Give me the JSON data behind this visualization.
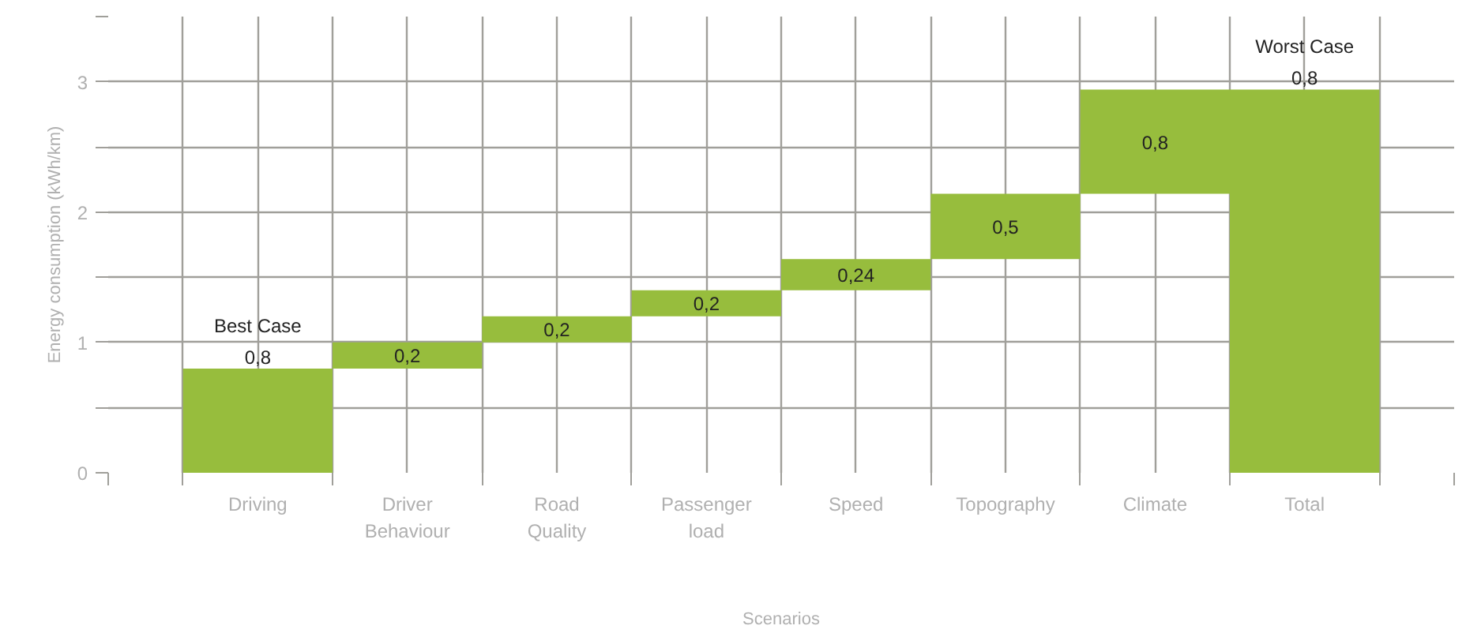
{
  "chart_data": {
    "type": "bar",
    "xlabel": "Scenarios",
    "ylabel": "Energy consumption (kWh/km)",
    "categories": [
      "Driving",
      "Driver Behaviour",
      "Road Quality",
      "Passenger load",
      "Speed",
      "Topography",
      "Climate",
      "Total"
    ],
    "base": [
      0,
      0.8,
      1.0,
      1.2,
      1.4,
      1.64,
      2.14,
      0
    ],
    "values": [
      0.8,
      0.2,
      0.2,
      0.2,
      0.24,
      0.5,
      0.8,
      2.94
    ],
    "value_labels": [
      "0,8",
      "0,2",
      "0,2",
      "0,2",
      "0,24",
      "0,5",
      "0,8",
      null
    ],
    "color": "#97bd3d",
    "ylim": [
      0,
      3.5
    ],
    "yticks": [
      0,
      {
        "value": 0.5,
        "label": null
      },
      1,
      {
        "value": 1.5,
        "label": null
      },
      2,
      {
        "value": 2.5,
        "label": null
      },
      3,
      {
        "value": 3.5,
        "label": null
      }
    ],
    "grid": true,
    "annotations": [
      {
        "text": "Best Case",
        "x": "Driving",
        "y": 0.8
      },
      {
        "text": "0,8",
        "x": "Total",
        "y": 2.94
      },
      {
        "text": "Worst Case",
        "x": "Total",
        "y": 2.94
      }
    ]
  }
}
